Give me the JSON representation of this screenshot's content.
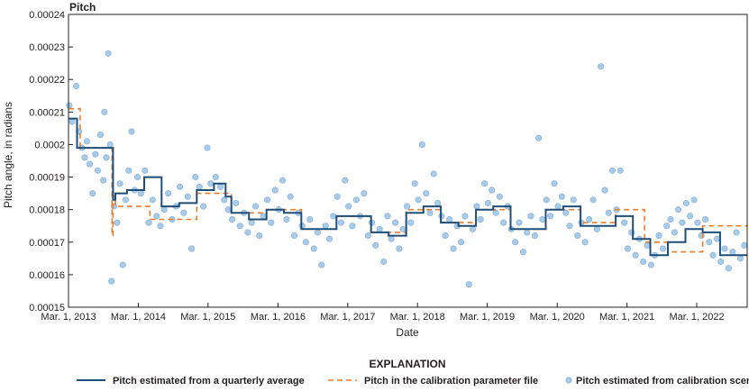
{
  "chart_data": {
    "type": "line",
    "title": "Pitch",
    "xlabel": "Date",
    "ylabel": "Pitch angle, in radians",
    "x_type": "date",
    "xlim": [
      "2013-03-01",
      "2022-11-20"
    ],
    "ylim": [
      0.00015,
      0.00024
    ],
    "y_ticks": [
      "0.00015",
      "0.00016",
      "0.00017",
      "0.00018",
      "0.00019",
      "0.0002",
      "0.00021",
      "0.00022",
      "0.00023",
      "0.00024"
    ],
    "x_ticks": [
      {
        "date": "2013-03-01",
        "label": "Mar. 1, 2013"
      },
      {
        "date": "2014-03-01",
        "label": "Mar. 1, 2014"
      },
      {
        "date": "2015-03-01",
        "label": "Mar. 1, 2015"
      },
      {
        "date": "2016-03-01",
        "label": "Mar. 1, 2016"
      },
      {
        "date": "2017-03-01",
        "label": "Mar. 1, 2017"
      },
      {
        "date": "2018-03-01",
        "label": "Mar. 1, 2018"
      },
      {
        "date": "2019-03-01",
        "label": "Mar. 1, 2019"
      },
      {
        "date": "2020-03-01",
        "label": "Mar. 1, 2020"
      },
      {
        "date": "2021-03-01",
        "label": "Mar. 1, 2021"
      },
      {
        "date": "2022-03-01",
        "label": "Mar. 1, 2022"
      }
    ],
    "grid": false,
    "legend": {
      "title": "EXPLANATION",
      "placement": "bottom"
    },
    "series": [
      {
        "name": "Pitch estimated from a quarterly average",
        "kind": "step",
        "color": "#1f4e79",
        "points": [
          [
            "2013-03-01",
            0.000208
          ],
          [
            "2013-04-15",
            0.000199
          ],
          [
            "2013-07-01",
            0.000199
          ],
          [
            "2013-10-01",
            0.000199
          ],
          [
            "2013-10-20",
            0.000183
          ],
          [
            "2013-11-01",
            0.000185
          ],
          [
            "2014-01-01",
            0.000186
          ],
          [
            "2014-04-01",
            0.00019
          ],
          [
            "2014-07-01",
            0.000181
          ],
          [
            "2014-10-01",
            0.000182
          ],
          [
            "2015-01-01",
            0.000186
          ],
          [
            "2015-04-01",
            0.000188
          ],
          [
            "2015-06-01",
            0.000184
          ],
          [
            "2015-07-01",
            0.000179
          ],
          [
            "2015-10-01",
            0.000177
          ],
          [
            "2016-01-01",
            0.00018
          ],
          [
            "2016-04-01",
            0.000179
          ],
          [
            "2016-07-01",
            0.000174
          ],
          [
            "2016-10-01",
            0.000174
          ],
          [
            "2017-01-01",
            0.000178
          ],
          [
            "2017-04-01",
            0.000178
          ],
          [
            "2017-07-01",
            0.000173
          ],
          [
            "2017-10-01",
            0.000172
          ],
          [
            "2018-01-01",
            0.000179
          ],
          [
            "2018-04-01",
            0.000181
          ],
          [
            "2018-07-01",
            0.000176
          ],
          [
            "2018-10-01",
            0.000175
          ],
          [
            "2019-01-01",
            0.00018
          ],
          [
            "2019-04-01",
            0.000181
          ],
          [
            "2019-07-01",
            0.000174
          ],
          [
            "2019-10-01",
            0.000174
          ],
          [
            "2020-01-01",
            0.00018
          ],
          [
            "2020-04-01",
            0.000181
          ],
          [
            "2020-07-01",
            0.000175
          ],
          [
            "2020-10-01",
            0.000175
          ],
          [
            "2021-01-01",
            0.000178
          ],
          [
            "2021-04-01",
            0.000171
          ],
          [
            "2021-07-01",
            0.000166
          ],
          [
            "2021-10-01",
            0.00017
          ],
          [
            "2022-01-01",
            0.000174
          ],
          [
            "2022-04-01",
            0.000173
          ],
          [
            "2022-07-01",
            0.000166
          ],
          [
            "2022-11-20",
            0.000166
          ]
        ]
      },
      {
        "name": "Pitch in the calibration parameter file",
        "kind": "step-dashed",
        "color": "#e87d2f",
        "points": [
          [
            "2013-03-01",
            0.000211
          ],
          [
            "2013-05-01",
            0.000199
          ],
          [
            "2013-10-15",
            0.000172
          ],
          [
            "2013-10-20",
            0.000184
          ],
          [
            "2013-11-01",
            0.000181
          ],
          [
            "2014-04-01",
            0.000181
          ],
          [
            "2014-05-01",
            0.000177
          ],
          [
            "2015-01-01",
            0.000185
          ],
          [
            "2015-05-01",
            0.000185
          ],
          [
            "2015-07-01",
            0.000179
          ],
          [
            "2016-01-01",
            0.00018
          ],
          [
            "2016-07-01",
            0.000174
          ],
          [
            "2017-01-01",
            0.000178
          ],
          [
            "2017-07-01",
            0.000173
          ],
          [
            "2018-01-01",
            0.00018
          ],
          [
            "2018-07-01",
            0.000176
          ],
          [
            "2019-01-01",
            0.00018
          ],
          [
            "2019-07-01",
            0.000174
          ],
          [
            "2020-01-01",
            0.00018
          ],
          [
            "2020-07-01",
            0.000176
          ],
          [
            "2021-01-01",
            0.00018
          ],
          [
            "2021-06-01",
            0.00017
          ],
          [
            "2021-10-01",
            0.000167
          ],
          [
            "2022-04-01",
            0.000175
          ],
          [
            "2022-11-20",
            0.000175
          ]
        ]
      },
      {
        "name": "Pitch estimated from calibration scene",
        "kind": "scatter",
        "color": "#a9cbea",
        "stroke": "#7fa9d1",
        "points": [
          [
            "2013-03-05",
            0.000212
          ],
          [
            "2013-03-20",
            0.000207
          ],
          [
            "2013-04-10",
            0.000218
          ],
          [
            "2013-04-25",
            0.000204
          ],
          [
            "2013-05-10",
            0.000199
          ],
          [
            "2013-05-25",
            0.000196
          ],
          [
            "2013-06-05",
            0.000201
          ],
          [
            "2013-06-20",
            0.000194
          ],
          [
            "2013-07-05",
            0.000185
          ],
          [
            "2013-07-20",
            0.000197
          ],
          [
            "2013-08-01",
            0.000192
          ],
          [
            "2013-08-15",
            0.000203
          ],
          [
            "2013-08-30",
            0.000189
          ],
          [
            "2013-09-05",
            0.00021
          ],
          [
            "2013-09-15",
            0.000196
          ],
          [
            "2013-09-25",
            0.000228
          ],
          [
            "2013-10-05",
            0.0002
          ],
          [
            "2013-10-12",
            0.000158
          ],
          [
            "2013-10-25",
            0.000181
          ],
          [
            "2013-11-10",
            0.000176
          ],
          [
            "2013-11-25",
            0.000188
          ],
          [
            "2013-12-10",
            0.000163
          ],
          [
            "2013-12-25",
            0.000183
          ],
          [
            "2014-01-10",
            0.000192
          ],
          [
            "2014-01-25",
            0.000204
          ],
          [
            "2014-02-10",
            0.000186
          ],
          [
            "2014-02-25",
            0.00019
          ],
          [
            "2014-03-15",
            0.000185
          ],
          [
            "2014-04-05",
            0.000192
          ],
          [
            "2014-04-25",
            0.000176
          ],
          [
            "2014-05-15",
            0.000183
          ],
          [
            "2014-06-05",
            0.000178
          ],
          [
            "2014-06-25",
            0.000175
          ],
          [
            "2014-07-15",
            0.00018
          ],
          [
            "2014-08-05",
            0.000185
          ],
          [
            "2014-08-25",
            0.000177
          ],
          [
            "2014-09-15",
            0.000181
          ],
          [
            "2014-10-05",
            0.000187
          ],
          [
            "2014-10-25",
            0.000179
          ],
          [
            "2014-11-15",
            0.000184
          ],
          [
            "2014-12-05",
            0.000168
          ],
          [
            "2014-12-25",
            0.00019
          ],
          [
            "2015-01-15",
            0.000187
          ],
          [
            "2015-02-05",
            0.000181
          ],
          [
            "2015-02-25",
            0.000199
          ],
          [
            "2015-03-15",
            0.000188
          ],
          [
            "2015-04-10",
            0.00019
          ],
          [
            "2015-05-05",
            0.000187
          ],
          [
            "2015-05-25",
            0.000183
          ],
          [
            "2015-06-15",
            0.00018
          ],
          [
            "2015-07-05",
            0.000177
          ],
          [
            "2015-07-25",
            0.000182
          ],
          [
            "2015-08-15",
            0.000175
          ],
          [
            "2015-09-05",
            0.000179
          ],
          [
            "2015-09-25",
            0.000173
          ],
          [
            "2015-10-15",
            0.000176
          ],
          [
            "2015-11-05",
            0.000181
          ],
          [
            "2015-11-25",
            0.000172
          ],
          [
            "2015-12-15",
            0.000178
          ],
          [
            "2016-01-05",
            0.000183
          ],
          [
            "2016-01-25",
            0.000176
          ],
          [
            "2016-02-15",
            0.000186
          ],
          [
            "2016-03-05",
            0.00018
          ],
          [
            "2016-03-25",
            0.000189
          ],
          [
            "2016-04-15",
            0.000177
          ],
          [
            "2016-05-05",
            0.000184
          ],
          [
            "2016-05-25",
            0.000172
          ],
          [
            "2016-06-15",
            0.000179
          ],
          [
            "2016-07-05",
            0.000175
          ],
          [
            "2016-07-25",
            0.00017
          ],
          [
            "2016-08-15",
            0.000177
          ],
          [
            "2016-09-05",
            0.000168
          ],
          [
            "2016-09-25",
            0.000173
          ],
          [
            "2016-10-15",
            0.000163
          ],
          [
            "2016-11-05",
            0.000175
          ],
          [
            "2016-11-25",
            0.000171
          ],
          [
            "2016-12-15",
            0.000178
          ],
          [
            "2017-01-05",
            0.000184
          ],
          [
            "2017-01-25",
            0.000176
          ],
          [
            "2017-02-15",
            0.000189
          ],
          [
            "2017-03-05",
            0.000181
          ],
          [
            "2017-03-25",
            0.000175
          ],
          [
            "2017-04-15",
            0.000183
          ],
          [
            "2017-05-05",
            0.000178
          ],
          [
            "2017-05-25",
            0.000185
          ],
          [
            "2017-06-15",
            0.000172
          ],
          [
            "2017-07-05",
            0.000176
          ],
          [
            "2017-07-25",
            0.000169
          ],
          [
            "2017-08-15",
            0.000174
          ],
          [
            "2017-09-05",
            0.000164
          ],
          [
            "2017-09-25",
            0.000178
          ],
          [
            "2017-10-15",
            0.000171
          ],
          [
            "2017-11-05",
            0.000176
          ],
          [
            "2017-11-25",
            0.000168
          ],
          [
            "2017-12-15",
            0.000174
          ],
          [
            "2018-01-05",
            0.000181
          ],
          [
            "2018-01-25",
            0.000176
          ],
          [
            "2018-02-15",
            0.000188
          ],
          [
            "2018-03-05",
            0.000183
          ],
          [
            "2018-03-25",
            0.0002
          ],
          [
            "2018-04-15",
            0.000185
          ],
          [
            "2018-05-05",
            0.000179
          ],
          [
            "2018-05-25",
            0.000191
          ],
          [
            "2018-06-15",
            0.000182
          ],
          [
            "2018-07-05",
            0.000178
          ],
          [
            "2018-07-25",
            0.000172
          ],
          [
            "2018-08-15",
            0.000177
          ],
          [
            "2018-09-05",
            0.000168
          ],
          [
            "2018-09-25",
            0.000175
          ],
          [
            "2018-10-15",
            0.00017
          ],
          [
            "2018-11-05",
            0.000178
          ],
          [
            "2018-11-25",
            0.000157
          ],
          [
            "2018-12-15",
            0.000174
          ],
          [
            "2019-01-05",
            0.000181
          ],
          [
            "2019-01-25",
            0.000177
          ],
          [
            "2019-02-15",
            0.000188
          ],
          [
            "2019-03-05",
            0.000182
          ],
          [
            "2019-03-25",
            0.000186
          ],
          [
            "2019-04-15",
            0.000179
          ],
          [
            "2019-05-05",
            0.000184
          ],
          [
            "2019-05-25",
            0.000176
          ],
          [
            "2019-06-15",
            0.000181
          ],
          [
            "2019-07-05",
            0.000174
          ],
          [
            "2019-07-25",
            0.00017
          ],
          [
            "2019-08-15",
            0.000176
          ],
          [
            "2019-09-05",
            0.000167
          ],
          [
            "2019-09-25",
            0.000173
          ],
          [
            "2019-10-15",
            0.000178
          ],
          [
            "2019-11-05",
            0.000172
          ],
          [
            "2019-11-25",
            0.000202
          ],
          [
            "2019-12-15",
            0.000177
          ],
          [
            "2020-01-05",
            0.000183
          ],
          [
            "2020-01-25",
            0.000178
          ],
          [
            "2020-02-15",
            0.000188
          ],
          [
            "2020-03-05",
            0.000181
          ],
          [
            "2020-03-25",
            0.000184
          ],
          [
            "2020-04-15",
            0.000179
          ],
          [
            "2020-05-05",
            0.000175
          ],
          [
            "2020-05-25",
            0.000183
          ],
          [
            "2020-06-15",
            0.000172
          ],
          [
            "2020-07-05",
            0.000176
          ],
          [
            "2020-07-25",
            0.00017
          ],
          [
            "2020-08-15",
            0.000177
          ],
          [
            "2020-09-05",
            0.000183
          ],
          [
            "2020-09-25",
            0.000174
          ],
          [
            "2020-10-15",
            0.000224
          ],
          [
            "2020-11-05",
            0.000186
          ],
          [
            "2020-11-25",
            0.000179
          ],
          [
            "2020-12-15",
            0.000192
          ],
          [
            "2021-01-05",
            0.00018
          ],
          [
            "2021-01-25",
            0.000192
          ],
          [
            "2021-02-15",
            0.000176
          ],
          [
            "2021-03-05",
            0.000168
          ],
          [
            "2021-03-25",
            0.000173
          ],
          [
            "2021-04-15",
            0.000166
          ],
          [
            "2021-05-05",
            0.000171
          ],
          [
            "2021-05-25",
            0.000164
          ],
          [
            "2021-06-15",
            0.000169
          ],
          [
            "2021-07-05",
            0.000163
          ],
          [
            "2021-07-25",
            0.000166
          ],
          [
            "2021-08-15",
            0.000172
          ],
          [
            "2021-09-05",
            0.000168
          ],
          [
            "2021-09-25",
            0.000175
          ],
          [
            "2021-10-15",
            0.000177
          ],
          [
            "2021-11-05",
            0.000173
          ],
          [
            "2021-11-25",
            0.00018
          ],
          [
            "2021-12-15",
            0.000176
          ],
          [
            "2022-01-05",
            0.000182
          ],
          [
            "2022-01-25",
            0.000178
          ],
          [
            "2022-02-15",
            0.000183
          ],
          [
            "2022-03-05",
            0.000176
          ],
          [
            "2022-03-25",
            0.000172
          ],
          [
            "2022-04-15",
            0.000177
          ],
          [
            "2022-05-05",
            0.00017
          ],
          [
            "2022-05-25",
            0.000166
          ],
          [
            "2022-06-15",
            0.000171
          ],
          [
            "2022-07-05",
            0.000164
          ],
          [
            "2022-07-25",
            0.000168
          ],
          [
            "2022-08-15",
            0.000162
          ],
          [
            "2022-09-05",
            0.000167
          ],
          [
            "2022-09-25",
            0.000173
          ],
          [
            "2022-10-15",
            0.000165
          ],
          [
            "2022-11-05",
            0.000169
          ]
        ]
      }
    ]
  }
}
